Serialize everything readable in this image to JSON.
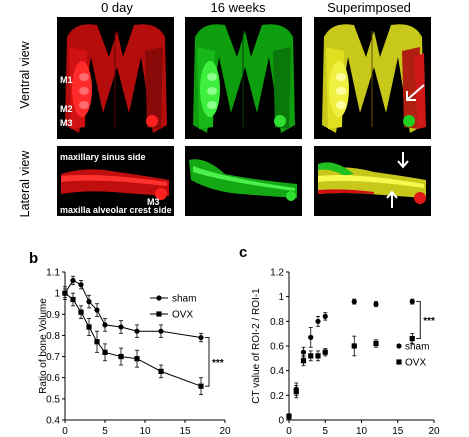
{
  "figure_a": {
    "columns": [
      "0 day",
      "16 weeks",
      "Superimposed"
    ],
    "rows": [
      "Ventral view",
      "Lateral view"
    ],
    "ventral_tooth_labels": [
      "M1",
      "M2",
      "M3"
    ],
    "lateral_labels": {
      "top": "maxillary  sinus side",
      "bottom": "maxilla  alveolar  crest side",
      "tooth": "M3"
    },
    "colors": {
      "baseline": "#e01010",
      "followup": "#20d020",
      "overlay": "#d8d820"
    }
  },
  "panel_b": {
    "letter": "b"
  },
  "panel_c": {
    "letter": "c"
  },
  "chart_data": [
    {
      "type": "line",
      "ylabel": "Ratio of bone Volume",
      "xlabel": "Weeks after teeth extractions",
      "xlim": [
        0,
        20
      ],
      "ylim": [
        0.4,
        1.1
      ],
      "xticks": [
        0,
        5,
        10,
        15,
        20
      ],
      "yticks": [
        0.4,
        0.5,
        0.6,
        0.7,
        0.8,
        0.9,
        1.0,
        1.1
      ],
      "ytick_labels": [
        "0.4",
        "0.5",
        "0.6",
        "0.7",
        "0.8",
        "0.9",
        "1",
        "1.1"
      ],
      "legend": "top-right",
      "significance": "***",
      "series": [
        {
          "name": "sham",
          "marker": "circle",
          "x": [
            0,
            1,
            2,
            3,
            4,
            5,
            7,
            9,
            12,
            17
          ],
          "y": [
            1.0,
            1.06,
            1.04,
            0.96,
            0.92,
            0.85,
            0.84,
            0.82,
            0.82,
            0.79
          ],
          "err": [
            0.03,
            0.02,
            0.02,
            0.03,
            0.03,
            0.03,
            0.03,
            0.03,
            0.03,
            0.02
          ]
        },
        {
          "name": "OVX",
          "marker": "square",
          "x": [
            0,
            1,
            2,
            3,
            4,
            5,
            7,
            9,
            12,
            17
          ],
          "y": [
            1.0,
            0.97,
            0.91,
            0.84,
            0.77,
            0.72,
            0.7,
            0.69,
            0.63,
            0.56
          ],
          "err": [
            0.02,
            0.03,
            0.03,
            0.04,
            0.05,
            0.04,
            0.04,
            0.04,
            0.03,
            0.04
          ]
        }
      ]
    },
    {
      "type": "scatter",
      "ylabel": "CT value  of ROI-2 / ROI-1",
      "xlabel": "Weeks after teeth  extractions",
      "xlim": [
        0,
        20
      ],
      "ylim": [
        0,
        1.2
      ],
      "xticks": [
        0,
        5,
        10,
        15,
        20
      ],
      "yticks": [
        0,
        0.2,
        0.4,
        0.6,
        0.8,
        1.0,
        1.2
      ],
      "ytick_labels": [
        "0",
        "0.2",
        "0.4",
        "0.6",
        "0.8",
        "1",
        "1.2"
      ],
      "legend": "right",
      "significance": "***",
      "series": [
        {
          "name": "sham",
          "marker": "circle",
          "x": [
            0,
            1,
            2,
            3,
            4,
            5,
            9,
            12,
            17
          ],
          "y": [
            0.03,
            0.25,
            0.55,
            0.67,
            0.8,
            0.84,
            0.96,
            0.94,
            0.96
          ],
          "err": [
            0.02,
            0.05,
            0.04,
            0.08,
            0.04,
            0.03,
            0.02,
            0.02,
            0.02
          ]
        },
        {
          "name": "OVX",
          "marker": "square",
          "x": [
            0,
            1,
            2,
            3,
            4,
            5,
            9,
            12,
            17
          ],
          "y": [
            0.03,
            0.23,
            0.48,
            0.52,
            0.52,
            0.55,
            0.6,
            0.62,
            0.66
          ],
          "err": [
            0.02,
            0.05,
            0.04,
            0.04,
            0.04,
            0.03,
            0.08,
            0.03,
            0.04
          ]
        }
      ]
    }
  ]
}
